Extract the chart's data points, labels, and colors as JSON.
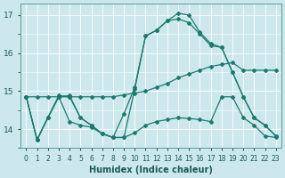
{
  "xlabel": "Humidex (Indice chaleur)",
  "bg_color": "#cce8ec",
  "grid_color": "#ffffff",
  "line_color": "#1a7a6e",
  "xlim": [
    -0.5,
    23.5
  ],
  "ylim": [
    13.5,
    17.3
  ],
  "yticks": [
    14,
    15,
    16,
    17
  ],
  "xticks": [
    0,
    1,
    2,
    3,
    4,
    5,
    6,
    7,
    8,
    9,
    10,
    11,
    12,
    13,
    14,
    15,
    16,
    17,
    18,
    19,
    20,
    21,
    22,
    23
  ],
  "series": [
    {
      "x": [
        0,
        1,
        2,
        3,
        4,
        5,
        6,
        7,
        8,
        9,
        10,
        11,
        12,
        13,
        14,
        15,
        16,
        17,
        18,
        19,
        20,
        21,
        22,
        23
      ],
      "y": [
        14.85,
        13.72,
        14.3,
        14.85,
        14.88,
        14.3,
        14.1,
        13.88,
        13.78,
        13.78,
        15.05,
        16.45,
        16.6,
        16.85,
        17.05,
        17.0,
        16.55,
        16.25,
        16.15,
        15.5,
        14.85,
        14.3,
        14.1,
        13.82
      ]
    },
    {
      "x": [
        0,
        1,
        2,
        3,
        4,
        5,
        6,
        7,
        8,
        9,
        10,
        11,
        12,
        13,
        14,
        15,
        16,
        17,
        18,
        19,
        20,
        21,
        22,
        23
      ],
      "y": [
        14.85,
        13.72,
        14.3,
        14.88,
        14.85,
        14.3,
        14.1,
        13.88,
        13.78,
        14.4,
        15.1,
        16.45,
        16.6,
        16.85,
        16.9,
        16.8,
        16.5,
        16.2,
        16.15,
        15.5,
        14.85,
        14.3,
        14.1,
        13.82
      ]
    },
    {
      "x": [
        0,
        1,
        2,
        3,
        4,
        5,
        6,
        7,
        8,
        9,
        10,
        11,
        12,
        13,
        14,
        15,
        16,
        17,
        18,
        19,
        20,
        21,
        22,
        23
      ],
      "y": [
        14.85,
        14.85,
        14.85,
        14.85,
        14.85,
        14.85,
        14.85,
        14.85,
        14.85,
        14.9,
        14.95,
        15.0,
        15.1,
        15.2,
        15.35,
        15.45,
        15.55,
        15.65,
        15.7,
        15.75,
        15.55,
        15.55,
        15.55,
        15.55
      ]
    },
    {
      "x": [
        0,
        1,
        2,
        3,
        4,
        5,
        6,
        7,
        8,
        9,
        10,
        11,
        12,
        13,
        14,
        15,
        16,
        17,
        18,
        19,
        20,
        21,
        22,
        23
      ],
      "y": [
        14.85,
        13.72,
        14.3,
        14.85,
        14.2,
        14.1,
        14.05,
        13.88,
        13.78,
        13.78,
        13.9,
        14.1,
        14.2,
        14.25,
        14.3,
        14.28,
        14.25,
        14.2,
        14.85,
        14.85,
        14.3,
        14.1,
        13.82,
        13.78
      ]
    }
  ]
}
